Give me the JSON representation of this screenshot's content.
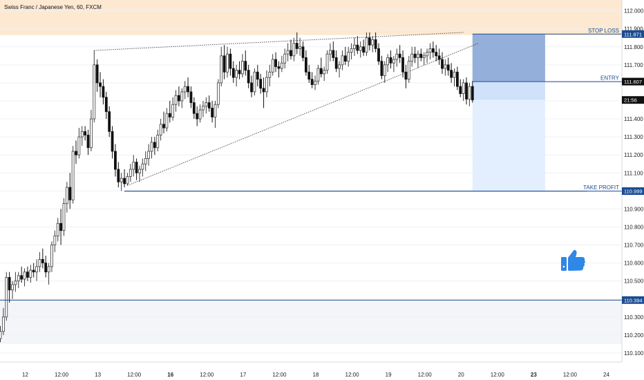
{
  "chart_data": {
    "type": "candlestick",
    "title": "Swiss Franc / Japanese Yen, 60, FXCM",
    "ylim": [
      110.05,
      112.06
    ],
    "y_ticks": [
      "112.000",
      "111.900",
      "111.800",
      "111.700",
      "111.600",
      "111.500",
      "111.400",
      "111.300",
      "111.200",
      "111.100",
      "111.000",
      "110.900",
      "110.800",
      "110.700",
      "110.600",
      "110.500",
      "110.400",
      "110.300",
      "110.200",
      "110.100"
    ],
    "x_ticks": [
      {
        "label": "12",
        "bold": false,
        "t": 0
      },
      {
        "label": "12:00",
        "bold": false,
        "t": 12
      },
      {
        "label": "13",
        "bold": false,
        "t": 24
      },
      {
        "label": "12:00",
        "bold": false,
        "t": 36
      },
      {
        "label": "16",
        "bold": true,
        "t": 48
      },
      {
        "label": "12:00",
        "bold": false,
        "t": 60
      },
      {
        "label": "17",
        "bold": false,
        "t": 72
      },
      {
        "label": "12:00",
        "bold": false,
        "t": 84
      },
      {
        "label": "18",
        "bold": false,
        "t": 96
      },
      {
        "label": "12:00",
        "bold": false,
        "t": 108
      },
      {
        "label": "19",
        "bold": false,
        "t": 120
      },
      {
        "label": "12:00",
        "bold": false,
        "t": 132
      },
      {
        "label": "20",
        "bold": false,
        "t": 144
      },
      {
        "label": "12:00",
        "bold": false,
        "t": 156
      },
      {
        "label": "23",
        "bold": true,
        "t": 168
      },
      {
        "label": "12:00",
        "bold": false,
        "t": 180
      },
      {
        "label": "24",
        "bold": false,
        "t": 192
      }
    ],
    "levels": {
      "stop_loss": {
        "label": "STOP LOSS",
        "value": 111.871,
        "text": "111.871"
      },
      "entry": {
        "label": "ENTRY",
        "value": 111.607,
        "text": "111.607"
      },
      "take_profit": {
        "label": "TAKE PROFIT",
        "value": 110.999,
        "text": "110.999"
      },
      "support": {
        "value": 110.394,
        "text": "110.394"
      }
    },
    "current": {
      "value": 111.505,
      "text": "21:56"
    },
    "zones": {
      "resistance": [
        111.865,
        112.06
      ],
      "support": [
        110.15,
        110.394
      ]
    },
    "trendlines": [
      {
        "name": "upper",
        "from": [
          31,
          111.78
        ],
        "to": [
          153,
          111.88
        ]
      },
      {
        "name": "lower",
        "from": [
          42,
          111.03
        ],
        "to": [
          158,
          111.82
        ]
      },
      {
        "name": "take-profit-ray",
        "from": [
          41,
          110.999
        ],
        "to": [
          194,
          110.999
        ]
      }
    ],
    "position_box": {
      "t_start": 156,
      "t_end": 180
    },
    "candles": [
      [
        0,
        110.18,
        110.25,
        110.16,
        110.22
      ],
      [
        1,
        110.22,
        110.35,
        110.2,
        110.3
      ],
      [
        2,
        110.3,
        110.55,
        110.28,
        110.52
      ],
      [
        3,
        110.52,
        110.55,
        110.38,
        110.45
      ],
      [
        4,
        110.45,
        110.5,
        110.4,
        110.48
      ],
      [
        5,
        110.48,
        110.55,
        110.44,
        110.5
      ],
      [
        6,
        110.5,
        110.55,
        110.46,
        110.53
      ],
      [
        7,
        110.53,
        110.58,
        110.49,
        110.51
      ],
      [
        8,
        110.51,
        110.57,
        110.47,
        110.55
      ],
      [
        9,
        110.55,
        110.58,
        110.5,
        110.52
      ],
      [
        10,
        110.52,
        110.59,
        110.49,
        110.56
      ],
      [
        11,
        110.56,
        110.6,
        110.52,
        110.55
      ],
      [
        12,
        110.55,
        110.62,
        110.5,
        110.58
      ],
      [
        13,
        110.58,
        110.66,
        110.55,
        110.62
      ],
      [
        14,
        110.62,
        110.68,
        110.57,
        110.6
      ],
      [
        15,
        110.6,
        110.64,
        110.52,
        110.55
      ],
      [
        16,
        110.55,
        110.6,
        110.48,
        110.58
      ],
      [
        17,
        110.58,
        110.72,
        110.55,
        110.7
      ],
      [
        18,
        110.7,
        110.78,
        110.66,
        110.75
      ],
      [
        19,
        110.75,
        110.85,
        110.72,
        110.82
      ],
      [
        20,
        110.82,
        110.9,
        110.7,
        110.78
      ],
      [
        21,
        110.78,
        110.96,
        110.75,
        110.93
      ],
      [
        22,
        110.93,
        111.05,
        110.88,
        111.02
      ],
      [
        23,
        111.02,
        111.1,
        110.9,
        110.95
      ],
      [
        24,
        110.95,
        111.25,
        110.93,
        111.22
      ],
      [
        25,
        111.22,
        111.28,
        111.15,
        111.2
      ],
      [
        26,
        111.2,
        111.35,
        111.18,
        111.3
      ],
      [
        27,
        111.3,
        111.36,
        111.25,
        111.33
      ],
      [
        28,
        111.33,
        111.36,
        111.28,
        111.31
      ],
      [
        29,
        111.31,
        111.34,
        111.2,
        111.24
      ],
      [
        30,
        111.24,
        111.45,
        111.22,
        111.4
      ],
      [
        31,
        111.4,
        111.78,
        111.38,
        111.7
      ],
      [
        32,
        111.7,
        111.73,
        111.55,
        111.6
      ],
      [
        33,
        111.6,
        111.66,
        111.52,
        111.58
      ],
      [
        34,
        111.58,
        111.62,
        111.48,
        111.52
      ],
      [
        35,
        111.52,
        111.55,
        111.4,
        111.44
      ],
      [
        36,
        111.44,
        111.47,
        111.3,
        111.33
      ],
      [
        37,
        111.33,
        111.36,
        111.18,
        111.22
      ],
      [
        38,
        111.22,
        111.26,
        111.08,
        111.12
      ],
      [
        39,
        111.12,
        111.16,
        111.02,
        111.05
      ],
      [
        40,
        111.05,
        111.1,
        111.0,
        111.07
      ],
      [
        41,
        111.07,
        111.12,
        111.02,
        111.04
      ],
      [
        42,
        111.04,
        111.1,
        111.03,
        111.08
      ],
      [
        43,
        111.08,
        111.15,
        111.05,
        111.12
      ],
      [
        44,
        111.12,
        111.2,
        111.08,
        111.16
      ],
      [
        45,
        111.16,
        111.18,
        111.06,
        111.1
      ],
      [
        46,
        111.1,
        111.14,
        111.05,
        111.12
      ],
      [
        47,
        111.12,
        111.18,
        111.08,
        111.15
      ],
      [
        48,
        111.15,
        111.22,
        111.11,
        111.18
      ],
      [
        49,
        111.18,
        111.26,
        111.14,
        111.22
      ],
      [
        50,
        111.22,
        111.3,
        111.18,
        111.27
      ],
      [
        51,
        111.27,
        111.3,
        111.2,
        111.24
      ],
      [
        52,
        111.24,
        111.34,
        111.22,
        111.31
      ],
      [
        53,
        111.31,
        111.4,
        111.28,
        111.37
      ],
      [
        54,
        111.37,
        111.44,
        111.32,
        111.35
      ],
      [
        55,
        111.35,
        111.46,
        111.33,
        111.43
      ],
      [
        56,
        111.43,
        111.5,
        111.38,
        111.41
      ],
      [
        57,
        111.41,
        111.52,
        111.39,
        111.48
      ],
      [
        58,
        111.48,
        111.56,
        111.44,
        111.53
      ],
      [
        59,
        111.53,
        111.58,
        111.47,
        111.5
      ],
      [
        60,
        111.5,
        111.57,
        111.46,
        111.55
      ],
      [
        61,
        111.55,
        111.61,
        111.51,
        111.58
      ],
      [
        62,
        111.58,
        111.63,
        111.52,
        111.55
      ],
      [
        63,
        111.55,
        111.58,
        111.46,
        111.49
      ],
      [
        64,
        111.49,
        111.52,
        111.4,
        111.43
      ],
      [
        65,
        111.43,
        111.47,
        111.36,
        111.4
      ],
      [
        66,
        111.4,
        111.48,
        111.38,
        111.45
      ],
      [
        67,
        111.45,
        111.5,
        111.41,
        111.47
      ],
      [
        68,
        111.47,
        111.52,
        111.43,
        111.49
      ],
      [
        69,
        111.49,
        111.53,
        111.44,
        111.46
      ],
      [
        70,
        111.46,
        111.5,
        111.38,
        111.41
      ],
      [
        71,
        111.41,
        111.5,
        111.35,
        111.48
      ],
      [
        72,
        111.48,
        111.62,
        111.46,
        111.6
      ],
      [
        73,
        111.6,
        111.8,
        111.58,
        111.75
      ],
      [
        74,
        111.75,
        111.81,
        111.62,
        111.66
      ],
      [
        75,
        111.66,
        111.8,
        111.63,
        111.76
      ],
      [
        76,
        111.76,
        111.79,
        111.64,
        111.68
      ],
      [
        77,
        111.68,
        111.72,
        111.6,
        111.63
      ],
      [
        78,
        111.63,
        111.7,
        111.58,
        111.67
      ],
      [
        79,
        111.67,
        111.72,
        111.62,
        111.65
      ],
      [
        80,
        111.65,
        111.76,
        111.63,
        111.72
      ],
      [
        81,
        111.72,
        111.78,
        111.64,
        111.67
      ],
      [
        82,
        111.67,
        111.7,
        111.57,
        111.6
      ],
      [
        83,
        111.6,
        111.64,
        111.52,
        111.55
      ],
      [
        84,
        111.55,
        111.68,
        111.53,
        111.66
      ],
      [
        85,
        111.66,
        111.7,
        111.58,
        111.62
      ],
      [
        86,
        111.62,
        111.65,
        111.54,
        111.57
      ],
      [
        87,
        111.57,
        111.63,
        111.46,
        111.55
      ],
      [
        88,
        111.55,
        111.67,
        111.52,
        111.63
      ],
      [
        89,
        111.63,
        111.7,
        111.58,
        111.66
      ],
      [
        90,
        111.66,
        111.76,
        111.64,
        111.73
      ],
      [
        91,
        111.73,
        111.77,
        111.66,
        111.69
      ],
      [
        92,
        111.69,
        111.72,
        111.63,
        111.68
      ],
      [
        93,
        111.68,
        111.75,
        111.66,
        111.71
      ],
      [
        94,
        111.71,
        111.79,
        111.68,
        111.76
      ],
      [
        95,
        111.76,
        111.82,
        111.72,
        111.78
      ],
      [
        96,
        111.78,
        111.84,
        111.73,
        111.75
      ],
      [
        97,
        111.75,
        111.85,
        111.72,
        111.82
      ],
      [
        98,
        111.82,
        111.88,
        111.76,
        111.79
      ],
      [
        99,
        111.79,
        111.85,
        111.75,
        111.8
      ],
      [
        100,
        111.8,
        111.83,
        111.72,
        111.74
      ],
      [
        101,
        111.74,
        111.78,
        111.64,
        111.66
      ],
      [
        102,
        111.66,
        111.7,
        111.6,
        111.62
      ],
      [
        103,
        111.62,
        111.66,
        111.57,
        111.59
      ],
      [
        104,
        111.59,
        111.64,
        111.56,
        111.61
      ],
      [
        105,
        111.61,
        111.7,
        111.59,
        111.68
      ],
      [
        106,
        111.68,
        111.74,
        111.63,
        111.65
      ],
      [
        107,
        111.65,
        111.69,
        111.61,
        111.67
      ],
      [
        108,
        111.67,
        111.78,
        111.65,
        111.76
      ],
      [
        109,
        111.76,
        111.82,
        111.72,
        111.78
      ],
      [
        110,
        111.78,
        111.83,
        111.72,
        111.74
      ],
      [
        111,
        111.74,
        111.78,
        111.66,
        111.68
      ],
      [
        112,
        111.68,
        111.72,
        111.63,
        111.7
      ],
      [
        113,
        111.7,
        111.78,
        111.67,
        111.75
      ],
      [
        114,
        111.75,
        111.8,
        111.7,
        111.72
      ],
      [
        115,
        111.72,
        111.8,
        111.69,
        111.77
      ],
      [
        116,
        111.77,
        111.82,
        111.73,
        111.79
      ],
      [
        117,
        111.79,
        111.85,
        111.75,
        111.81
      ],
      [
        118,
        111.81,
        111.86,
        111.76,
        111.78
      ],
      [
        119,
        111.78,
        111.83,
        111.74,
        111.8
      ],
      [
        120,
        111.8,
        111.84,
        111.75,
        111.77
      ],
      [
        121,
        111.77,
        111.88,
        111.75,
        111.85
      ],
      [
        122,
        111.85,
        111.88,
        111.78,
        111.81
      ],
      [
        123,
        111.81,
        111.86,
        111.77,
        111.84
      ],
      [
        124,
        111.84,
        111.88,
        111.77,
        111.79
      ],
      [
        125,
        111.79,
        111.82,
        111.7,
        111.72
      ],
      [
        126,
        111.72,
        111.75,
        111.62,
        111.64
      ],
      [
        127,
        111.64,
        111.72,
        111.6,
        111.7
      ],
      [
        128,
        111.7,
        111.76,
        111.66,
        111.74
      ],
      [
        129,
        111.74,
        111.78,
        111.68,
        111.71
      ],
      [
        130,
        111.71,
        111.75,
        111.66,
        111.73
      ],
      [
        131,
        111.73,
        111.79,
        111.69,
        111.76
      ],
      [
        132,
        111.76,
        111.81,
        111.71,
        111.74
      ],
      [
        133,
        111.74,
        111.78,
        111.63,
        111.66
      ],
      [
        134,
        111.66,
        111.7,
        111.57,
        111.62
      ],
      [
        135,
        111.62,
        111.75,
        111.6,
        111.72
      ],
      [
        136,
        111.72,
        111.8,
        111.69,
        111.76
      ],
      [
        137,
        111.76,
        111.8,
        111.71,
        111.74
      ],
      [
        138,
        111.74,
        111.78,
        111.68,
        111.76
      ],
      [
        139,
        111.76,
        111.79,
        111.72,
        111.74
      ],
      [
        140,
        111.74,
        111.77,
        111.7,
        111.75
      ],
      [
        141,
        111.75,
        111.79,
        111.71,
        111.77
      ],
      [
        142,
        111.77,
        111.82,
        111.73,
        111.79
      ],
      [
        143,
        111.79,
        111.83,
        111.74,
        111.77
      ],
      [
        144,
        111.77,
        111.81,
        111.72,
        111.75
      ],
      [
        145,
        111.75,
        111.79,
        111.7,
        111.73
      ],
      [
        146,
        111.73,
        111.77,
        111.65,
        111.68
      ],
      [
        147,
        111.68,
        111.73,
        111.64,
        111.7
      ],
      [
        148,
        111.7,
        111.74,
        111.64,
        111.67
      ],
      [
        149,
        111.67,
        111.71,
        111.6,
        111.63
      ],
      [
        150,
        111.63,
        111.68,
        111.58,
        111.66
      ],
      [
        151,
        111.66,
        111.69,
        111.56,
        111.58
      ],
      [
        152,
        111.58,
        111.62,
        111.52,
        111.54
      ],
      [
        153,
        111.54,
        111.62,
        111.5,
        111.6
      ],
      [
        154,
        111.6,
        111.63,
        111.48,
        111.51
      ],
      [
        155,
        111.51,
        111.6,
        111.47,
        111.58
      ],
      [
        156,
        111.58,
        111.61,
        111.49,
        111.505
      ]
    ]
  }
}
